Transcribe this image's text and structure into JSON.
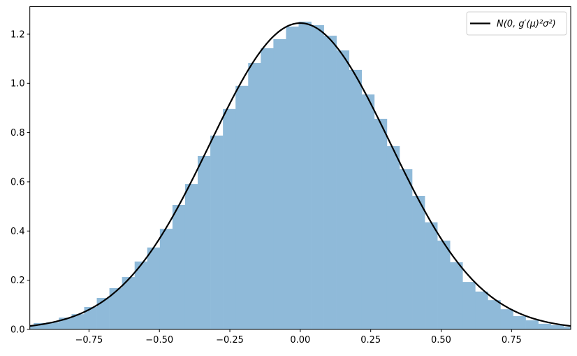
{
  "chart_data": {
    "type": "bar",
    "title": "",
    "xlabel": "",
    "ylabel": "",
    "xlim": [
      -0.96,
      0.96
    ],
    "ylim": [
      0,
      1.312
    ],
    "grid": false,
    "histogram": {
      "bin_start": -0.991,
      "bin_width": 0.04478,
      "color": "#8fbad9",
      "values": [
        0.018,
        0.026,
        0.029,
        0.048,
        0.062,
        0.091,
        0.128,
        0.168,
        0.213,
        0.276,
        0.333,
        0.409,
        0.506,
        0.591,
        0.705,
        0.788,
        0.896,
        0.99,
        1.083,
        1.143,
        1.18,
        1.231,
        1.251,
        1.237,
        1.194,
        1.134,
        1.055,
        0.955,
        0.856,
        0.745,
        0.651,
        0.543,
        0.435,
        0.361,
        0.273,
        0.193,
        0.154,
        0.119,
        0.082,
        0.054,
        0.037,
        0.023,
        0.017,
        0.01
      ]
    },
    "curve": {
      "type": "normal-pdf",
      "mean": 0,
      "std": 0.3204,
      "color": "#000000",
      "name": "N(0, g′(μ)²σ²)"
    },
    "xticks": [
      -0.75,
      -0.5,
      -0.25,
      0.0,
      0.25,
      0.5,
      0.75
    ],
    "xtick_labels": [
      "−0.75",
      "−0.50",
      "−0.25",
      "0.00",
      "0.25",
      "0.50",
      "0.75"
    ],
    "yticks": [
      0,
      0.2,
      0.4,
      0.6,
      0.8,
      1.0,
      1.2
    ],
    "ytick_labels": [
      "0.0",
      "0.2",
      "0.4",
      "0.6",
      "0.8",
      "1.0",
      "1.2"
    ],
    "legend": {
      "placement": "top-right",
      "entries": [
        "N(0, g′(μ)²σ²)"
      ]
    }
  }
}
